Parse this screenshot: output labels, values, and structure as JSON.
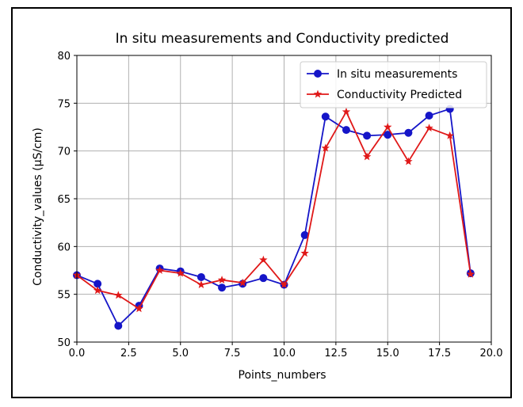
{
  "chart_data": {
    "type": "line",
    "title": "In situ measurements and Conductivity predicted",
    "xlabel": "Points_numbers",
    "ylabel": "Conductivity_values (µS/cm)",
    "xlim": [
      0,
      20
    ],
    "ylim": [
      50,
      80
    ],
    "xticks": [
      0,
      2.5,
      5,
      7.5,
      10,
      12.5,
      15,
      17.5,
      20
    ],
    "xtick_labels": [
      "0.0",
      "2.5",
      "5.0",
      "7.5",
      "10.0",
      "12.5",
      "15.0",
      "17.5",
      "20.0"
    ],
    "yticks": [
      50,
      55,
      60,
      65,
      70,
      75,
      80
    ],
    "ytick_labels": [
      "50",
      "55",
      "60",
      "65",
      "70",
      "75",
      "80"
    ],
    "grid": true,
    "legend_position": "top-right",
    "x": [
      0,
      1,
      2,
      3,
      4,
      5,
      6,
      7,
      8,
      9,
      10,
      11,
      12,
      13,
      14,
      15,
      16,
      17,
      18,
      19
    ],
    "series": [
      {
        "name": "In situ measurements",
        "color": "#1515c8",
        "marker": "circle",
        "values": [
          57.0,
          56.1,
          51.7,
          53.8,
          57.7,
          57.4,
          56.8,
          55.7,
          56.1,
          56.7,
          56.0,
          61.2,
          73.6,
          72.2,
          71.6,
          71.7,
          71.9,
          73.7,
          74.4,
          57.2
        ]
      },
      {
        "name": "Conductivity Predicted",
        "color": "#e01818",
        "marker": "star",
        "values": [
          57.0,
          55.4,
          54.9,
          53.5,
          57.5,
          57.2,
          56.0,
          56.5,
          56.2,
          58.6,
          56.0,
          59.3,
          70.3,
          74.1,
          69.4,
          72.5,
          68.9,
          72.4,
          71.6,
          57.1
        ]
      }
    ]
  }
}
